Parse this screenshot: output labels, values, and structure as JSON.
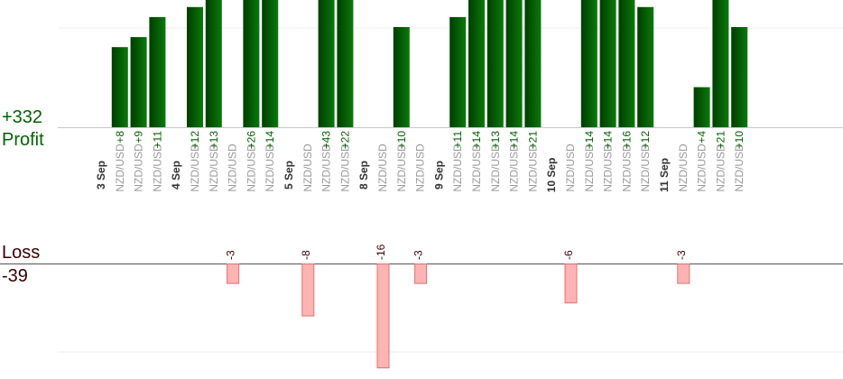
{
  "summary": {
    "profit_total": "+332",
    "profit_label": "Profit",
    "loss_label": "Loss",
    "loss_total": "-39"
  },
  "colors": {
    "profit_bar_dark": "#003d00",
    "profit_bar_light": "#0a7a0a",
    "profit_text": "#006400",
    "loss_fill": "#ffb3b3",
    "loss_stroke": "#e07070",
    "loss_text": "#3a0000",
    "pair_text": "#9a9a9a",
    "date_text": "#333333"
  },
  "chart_data": {
    "type": "bar",
    "title": "",
    "xlabel": "",
    "ylabel": "",
    "grid": true,
    "groups": [
      {
        "date": "3 Sep",
        "trades": [
          {
            "pair": "NZD/USD",
            "value": 8
          },
          {
            "pair": "NZD/USD",
            "value": 9
          },
          {
            "pair": "NZD/USD",
            "value": 11
          }
        ]
      },
      {
        "date": "4 Sep",
        "trades": [
          {
            "pair": "NZD/USD",
            "value": 12
          },
          {
            "pair": "NZD/USD",
            "value": 13
          },
          {
            "pair": "NZD/USD",
            "value": -3
          },
          {
            "pair": "NZD/USD",
            "value": 26
          },
          {
            "pair": "NZD/USD",
            "value": 14
          }
        ]
      },
      {
        "date": "5 Sep",
        "trades": [
          {
            "pair": "NZD/USD",
            "value": -8
          },
          {
            "pair": "NZD/USD",
            "value": 43
          },
          {
            "pair": "NZD/USD",
            "value": 22
          }
        ]
      },
      {
        "date": "8 Sep",
        "trades": [
          {
            "pair": "NZD/USD",
            "value": -16
          },
          {
            "pair": "NZD/USD",
            "value": 10
          },
          {
            "pair": "NZD/USD",
            "value": -3
          }
        ]
      },
      {
        "date": "9 Sep",
        "trades": [
          {
            "pair": "NZD/USD",
            "value": 11
          },
          {
            "pair": "NZD/USD",
            "value": 14
          },
          {
            "pair": "NZD/USD",
            "value": 13
          },
          {
            "pair": "NZD/USD",
            "value": 14
          },
          {
            "pair": "NZD/USD",
            "value": 21
          }
        ]
      },
      {
        "date": "10 Sep",
        "trades": [
          {
            "pair": "NZD/USD",
            "value": -6
          },
          {
            "pair": "NZD/USD",
            "value": 14
          },
          {
            "pair": "NZD/USD",
            "value": 14
          },
          {
            "pair": "NZD/USD",
            "value": 16
          },
          {
            "pair": "NZD/USD",
            "value": 12
          }
        ]
      },
      {
        "date": "11 Sep",
        "trades": [
          {
            "pair": "NZD/USD",
            "value": -3
          },
          {
            "pair": "NZD/USD",
            "value": 4
          },
          {
            "pair": "NZD/USD",
            "value": 21
          },
          {
            "pair": "NZD/USD",
            "value": 10
          }
        ]
      }
    ]
  }
}
